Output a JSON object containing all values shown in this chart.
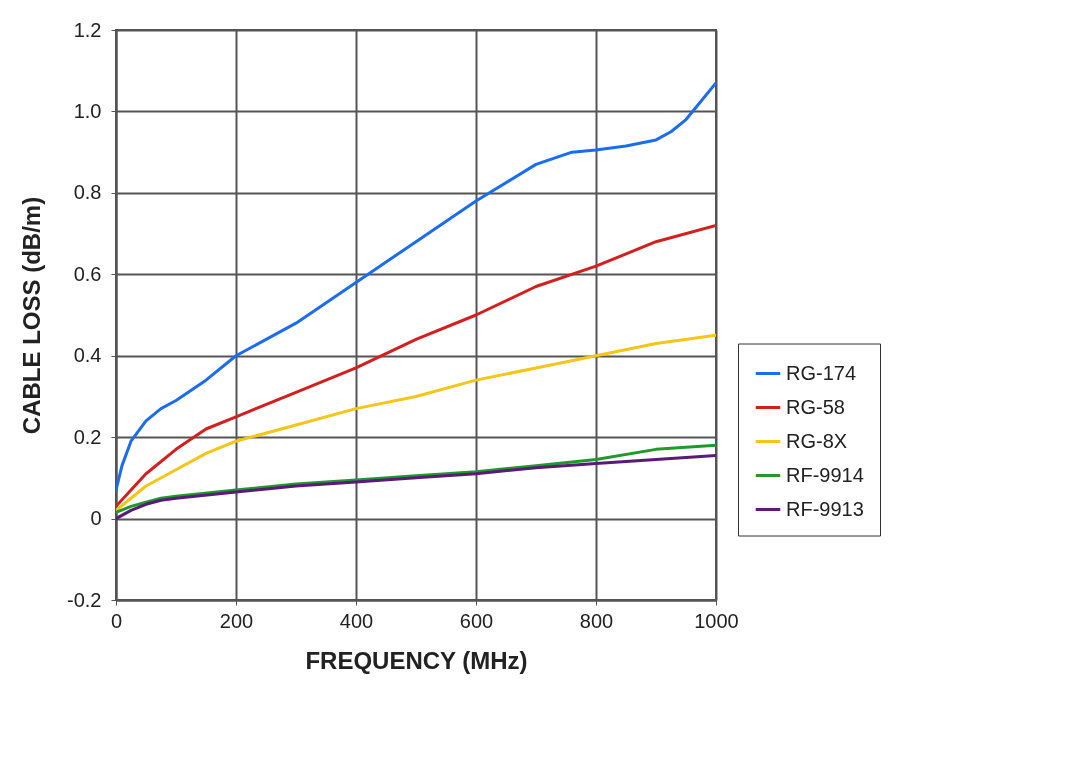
{
  "chart_data": {
    "type": "line",
    "xlabel": "FREQUENCY (MHz)",
    "ylabel": "CABLE LOSS (dB/m)",
    "xlim": [
      0,
      1000
    ],
    "xticks": [
      0,
      200,
      400,
      600,
      800,
      1000
    ],
    "ylim": [
      -0.2,
      1.2
    ],
    "yticks": [
      -0.2,
      0,
      0.2,
      0.4,
      0.6,
      0.8,
      {
        "value": 1,
        "label": "1.0"
      },
      1.2
    ],
    "grid": true,
    "legend": "right",
    "marker": "none",
    "series": [
      {
        "name": "RG-174",
        "color": "#1a6cf0",
        "x": [
          0,
          10,
          25,
          50,
          75,
          100,
          150,
          200,
          300,
          400,
          500,
          600,
          700,
          760,
          800,
          850,
          900,
          925,
          950,
          1000
        ],
        "values": [
          0.07,
          0.13,
          0.19,
          0.24,
          0.27,
          0.29,
          0.34,
          0.4,
          0.48,
          0.58,
          0.68,
          0.78,
          0.87,
          0.9,
          0.905,
          0.915,
          0.93,
          0.95,
          0.98,
          1.07
        ]
      },
      {
        "name": "RG-58",
        "color": "#d41f1f",
        "x": [
          0,
          25,
          50,
          100,
          150,
          200,
          300,
          400,
          500,
          600,
          700,
          800,
          900,
          1000
        ],
        "values": [
          0.03,
          0.07,
          0.11,
          0.17,
          0.22,
          0.25,
          0.31,
          0.37,
          0.44,
          0.5,
          0.57,
          0.62,
          0.68,
          0.72
        ]
      },
      {
        "name": "RG-8X",
        "color": "#f5c518",
        "x": [
          0,
          25,
          50,
          100,
          150,
          200,
          300,
          400,
          500,
          600,
          700,
          800,
          900,
          1000
        ],
        "values": [
          0.02,
          0.05,
          0.08,
          0.12,
          0.16,
          0.19,
          0.23,
          0.27,
          0.3,
          0.34,
          0.37,
          0.4,
          0.43,
          0.45
        ]
      },
      {
        "name": "RF-9914",
        "color": "#1f9a2a",
        "x": [
          0,
          25,
          50,
          75,
          100,
          200,
          300,
          400,
          500,
          600,
          700,
          800,
          900,
          1000
        ],
        "values": [
          0.015,
          0.03,
          0.04,
          0.05,
          0.055,
          0.07,
          0.085,
          0.095,
          0.105,
          0.115,
          0.13,
          0.145,
          0.17,
          0.18
        ]
      },
      {
        "name": "RF-9913",
        "color": "#5a1a78",
        "x": [
          0,
          25,
          50,
          75,
          100,
          200,
          300,
          400,
          500,
          600,
          700,
          800,
          900,
          1000
        ],
        "values": [
          0,
          0.02,
          0.035,
          0.045,
          0.05,
          0.065,
          0.08,
          0.09,
          0.1,
          0.11,
          0.125,
          0.135,
          0.145,
          0.155
        ]
      }
    ]
  }
}
